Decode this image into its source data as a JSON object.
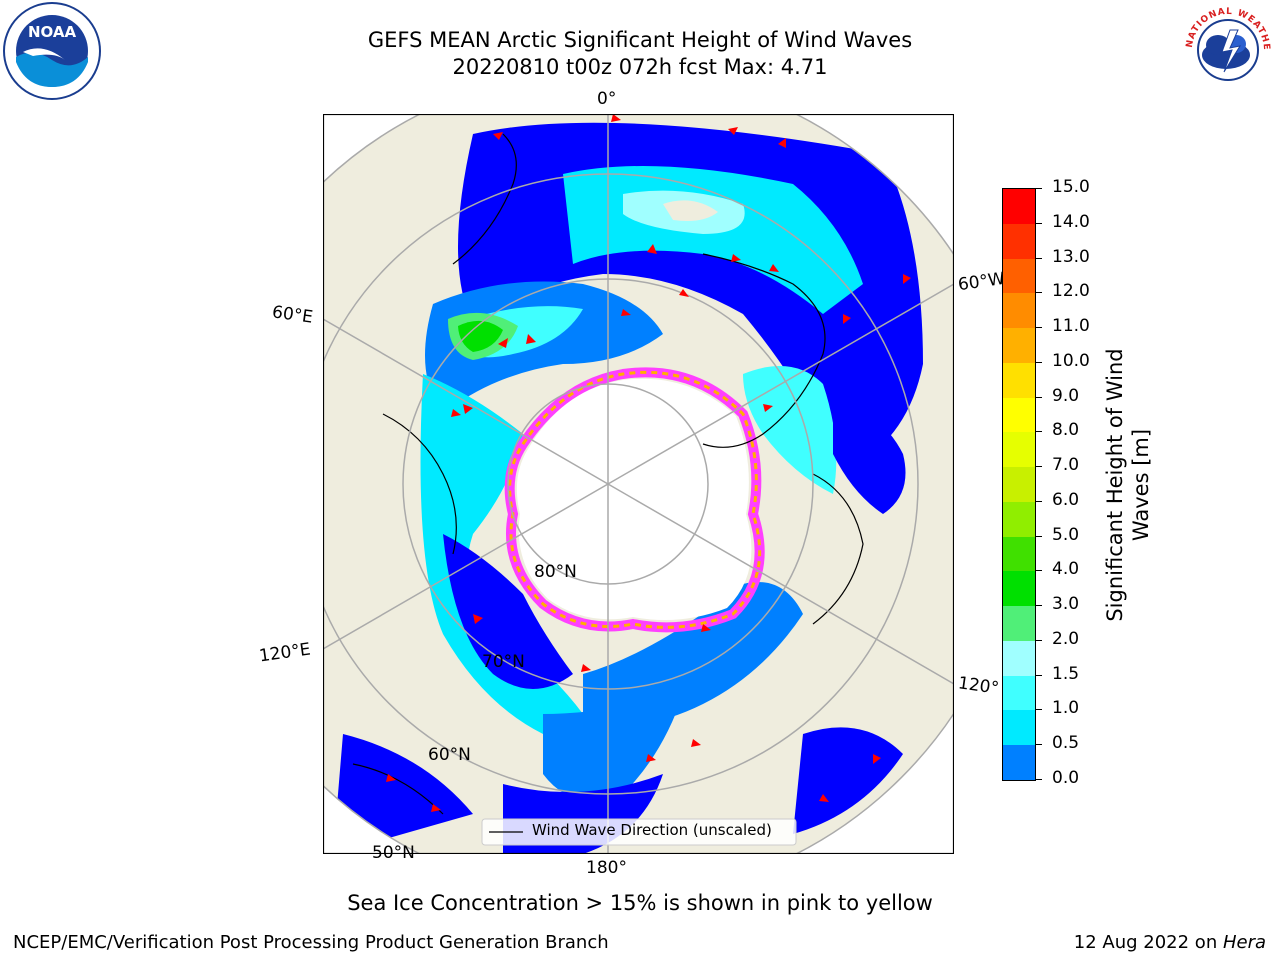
{
  "header": {
    "title_line1": "GEFS MEAN Arctic Significant Height of Wind Waves",
    "title_line2": "20220810 t00z 072h fcst   Max: 4.71"
  },
  "logos": {
    "noaa_text": "NOAA",
    "nws_text": "NATIONAL WEATHER SERVICE"
  },
  "map": {
    "lon_labels": {
      "top": "0°",
      "left_upper": "60°E",
      "left_lower": "120°E",
      "right_upper": "60°W",
      "right_lower": "120°",
      "bottom": "180°"
    },
    "lat_labels": {
      "l80": "80°N",
      "l70": "70°N",
      "l60": "60°N",
      "l50": "50°N"
    },
    "legend_label": "Wind Wave Direction (unscaled)"
  },
  "colorbar": {
    "title": "Significant Height of Wind Waves [m]",
    "ticks": [
      "15.0",
      "14.0",
      "13.0",
      "12.0",
      "11.0",
      "10.0",
      "9.0",
      "8.0",
      "7.0",
      "6.0",
      "5.0",
      "4.0",
      "3.0",
      "2.0",
      "1.5",
      "1.0",
      "0.5",
      "0.0"
    ],
    "colors": [
      "#ff0000",
      "#ff3000",
      "#ff6000",
      "#ff8c00",
      "#ffb000",
      "#ffe000",
      "#ffff00",
      "#e6ff00",
      "#c8f000",
      "#90ee00",
      "#40e000",
      "#00e000",
      "#50ef78",
      "#a0ffff",
      "#40ffff",
      "#00eaff",
      "#0080ff",
      "#0000ff"
    ]
  },
  "caption": "Sea Ice Concentration > 15% is shown in pink to yellow",
  "footer": {
    "left": "NCEP/EMC/Verification Post Processing Product Generation Branch",
    "right_date": "12 Aug 2022 on ",
    "right_host": "Hera"
  }
}
